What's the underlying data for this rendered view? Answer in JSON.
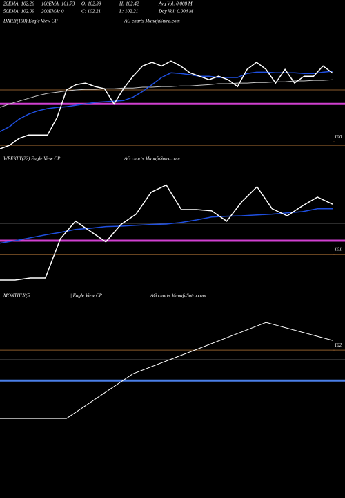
{
  "header": [
    [
      "20EMA: 102.26",
      "100EMA: 101.73",
      "O: 102.39",
      "H: 102.42",
      "Avg Vol: 0.008 M"
    ],
    [
      "50EMA: 102.09",
      "200EMA: 0",
      "C: 102.21",
      "L: 102.21",
      "Day Vol: 0.004 M"
    ]
  ],
  "chart_data": [
    {
      "type": "line",
      "title": "DAILY(100) Eagle   View  CP",
      "watermark": "AG charts MunafaSutra.com",
      "ylim": [
        99.56,
        103.67
      ],
      "yticks": [
        100
      ],
      "levels": [
        {
          "value": 101.67,
          "color": "#8a5a2b"
        },
        {
          "value": 101.22,
          "color": "#d040d0"
        },
        {
          "value": 99.89,
          "color": "#8a5a2b"
        }
      ],
      "series": [
        {
          "color": "#c8c8c8",
          "width": 1,
          "values": [
            101.11,
            101.22,
            101.31,
            101.4,
            101.49,
            101.56,
            101.6,
            101.64,
            101.67,
            101.69,
            101.69,
            101.71,
            101.71,
            101.73,
            101.73,
            101.76,
            101.76,
            101.78,
            101.78,
            101.8,
            101.8,
            101.82,
            101.84,
            101.87,
            101.87,
            101.89,
            101.89,
            101.91,
            101.91,
            101.93,
            101.93,
            101.96,
            101.96,
            101.98,
            101.98,
            102.0
          ]
        },
        {
          "color": "#1f4fe0",
          "width": 1.5,
          "values": [
            100.33,
            100.49,
            100.73,
            100.89,
            101.0,
            101.07,
            101.11,
            101.13,
            101.18,
            101.22,
            101.27,
            101.29,
            101.31,
            101.33,
            101.44,
            101.62,
            101.84,
            102.07,
            102.22,
            102.2,
            102.16,
            102.11,
            102.11,
            102.07,
            102.07,
            102.07,
            102.2,
            102.24,
            102.24,
            102.22,
            102.22,
            102.22,
            102.2,
            102.2,
            102.24,
            102.27
          ]
        },
        {
          "color": "#ffffff",
          "width": 1.5,
          "values": [
            99.78,
            99.89,
            100.11,
            100.22,
            100.22,
            100.22,
            100.78,
            101.67,
            101.84,
            101.89,
            101.78,
            101.71,
            101.22,
            101.71,
            102.11,
            102.44,
            102.56,
            102.44,
            102.6,
            102.44,
            102.22,
            102.11,
            102.0,
            102.11,
            102.0,
            101.78,
            102.33,
            102.56,
            102.33,
            101.89,
            102.33,
            101.89,
            102.11,
            102.11,
            102.44,
            102.21
          ]
        }
      ]
    },
    {
      "type": "line",
      "title": "WEEKLY(22) Eagle  View  CP",
      "watermark": "AG charts MunafaSutra.com",
      "ylim": [
        100.13,
        103.13
      ],
      "yticks": [
        101
      ],
      "levels": [
        {
          "value": 101.75,
          "color": "#b0b0b0"
        },
        {
          "value": 101.33,
          "color": "#d040d0"
        },
        {
          "value": 101,
          "color": "#8a5a2b"
        }
      ],
      "series": [
        {
          "color": "#1f4fe0",
          "width": 1.5,
          "values": [
            101.27,
            101.33,
            101.4,
            101.47,
            101.53,
            101.6,
            101.63,
            101.67,
            101.68,
            101.7,
            101.72,
            101.73,
            101.77,
            101.83,
            101.9,
            101.92,
            101.93,
            101.95,
            101.97,
            102.0,
            102.03,
            102.1,
            102.1
          ]
        },
        {
          "color": "#ffffff",
          "width": 1.5,
          "values": [
            100.38,
            100.38,
            100.43,
            100.43,
            101.38,
            101.8,
            101.55,
            101.3,
            101.72,
            101.97,
            102.5,
            102.67,
            102.08,
            102.08,
            102.05,
            101.8,
            102.27,
            102.63,
            102.1,
            101.93,
            102.17,
            102.38,
            102.21
          ]
        }
      ]
    },
    {
      "type": "line",
      "title": "MONTHLY(5",
      "title2": "| Eagle  View  CP",
      "watermark": "AG charts MunafaSutra.com",
      "ylim": [
        99.1,
        102.99
      ],
      "yticks": [
        102
      ],
      "levels": [
        {
          "value": 102,
          "color": "#8a5a2b"
        },
        {
          "value": 101.79,
          "color": "#b0b0b0"
        },
        {
          "value": 101.34,
          "color": "#4a7fe8"
        }
      ],
      "series": [
        {
          "color": "#ffffff",
          "width": 1,
          "values": [
            100.52,
            100.52,
            101.49,
            102.04,
            102.6,
            102.21
          ]
        }
      ]
    }
  ]
}
